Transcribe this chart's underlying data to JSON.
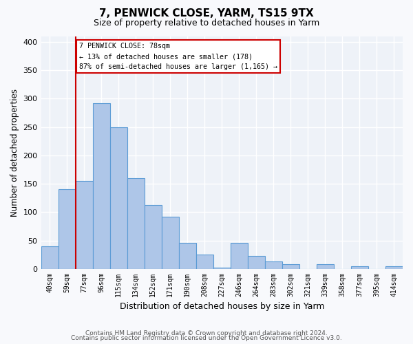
{
  "title": "7, PENWICK CLOSE, YARM, TS15 9TX",
  "subtitle": "Size of property relative to detached houses in Yarm",
  "xlabel": "Distribution of detached houses by size in Yarm",
  "ylabel": "Number of detached properties",
  "bar_labels": [
    "40sqm",
    "59sqm",
    "77sqm",
    "96sqm",
    "115sqm",
    "134sqm",
    "152sqm",
    "171sqm",
    "190sqm",
    "208sqm",
    "227sqm",
    "246sqm",
    "264sqm",
    "283sqm",
    "302sqm",
    "321sqm",
    "339sqm",
    "358sqm",
    "377sqm",
    "395sqm",
    "414sqm"
  ],
  "bar_values": [
    40,
    140,
    155,
    292,
    250,
    160,
    113,
    92,
    46,
    25,
    3,
    46,
    23,
    13,
    8,
    0,
    8,
    0,
    5,
    0,
    5
  ],
  "bar_color": "#aec6e8",
  "bar_edge_color": "#5b9bd5",
  "background_color": "#eef2f8",
  "grid_color": "#ffffff",
  "marker_color": "#cc0000",
  "annotation_title": "7 PENWICK CLOSE: 78sqm",
  "annotation_line1": "← 13% of detached houses are smaller (178)",
  "annotation_line2": "87% of semi-detached houses are larger (1,165) →",
  "annotation_box_color": "#cc0000",
  "ylim": [
    0,
    410
  ],
  "yticks": [
    0,
    50,
    100,
    150,
    200,
    250,
    300,
    350,
    400
  ],
  "footer_line1": "Contains HM Land Registry data © Crown copyright and database right 2024.",
  "footer_line2": "Contains public sector information licensed under the Open Government Licence v3.0."
}
